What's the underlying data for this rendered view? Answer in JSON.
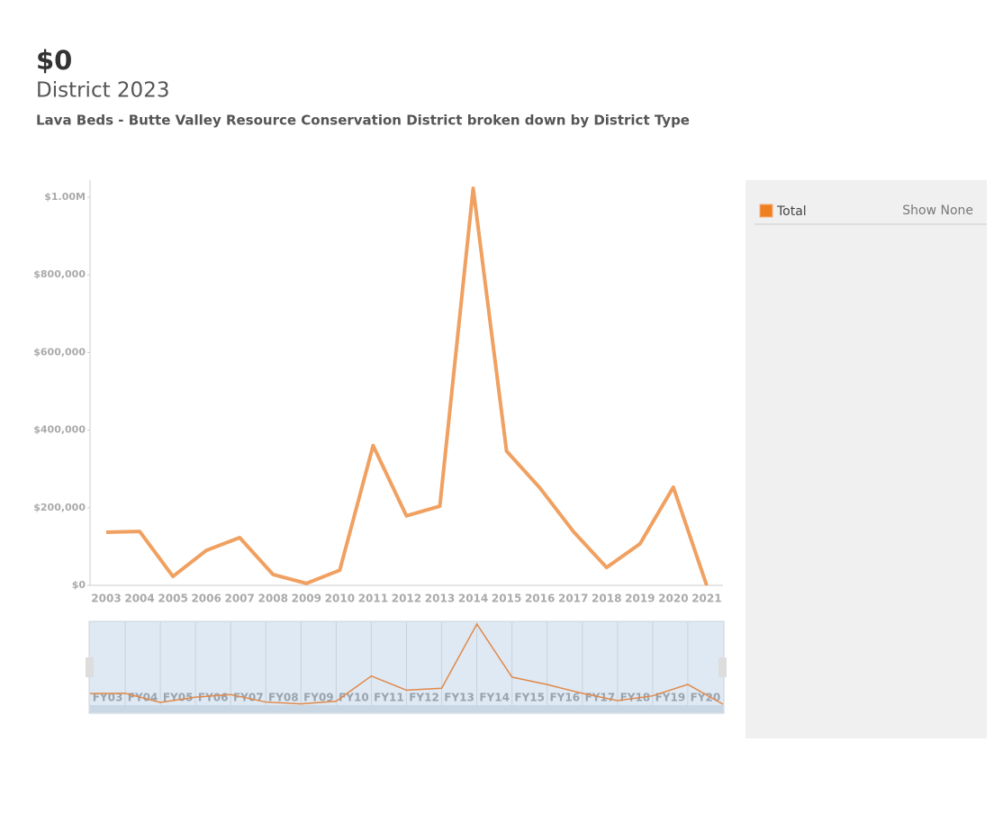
{
  "header": {
    "value": "$0",
    "title": "District 2023",
    "subtitle": "Lava Beds - Butte Valley Resource Conservation District broken down by District Type"
  },
  "chart_data": {
    "type": "line",
    "categories": [
      "2003",
      "2004",
      "2005",
      "2006",
      "2007",
      "2008",
      "2009",
      "2010",
      "2011",
      "2012",
      "2013",
      "2014",
      "2015",
      "2016",
      "2017",
      "2018",
      "2019",
      "2020",
      "2021"
    ],
    "series": [
      {
        "name": "Total",
        "color": "#f0a060",
        "values": [
          137000,
          139000,
          23000,
          90000,
          123000,
          28000,
          5000,
          39000,
          360000,
          179000,
          204000,
          1023000,
          346000,
          251000,
          139000,
          46000,
          107000,
          253000,
          0
        ]
      }
    ],
    "ylim": [
      0,
      1044000
    ],
    "yticks": [
      {
        "value": 0,
        "label": "$0"
      },
      {
        "value": 200000,
        "label": "$200,000"
      },
      {
        "value": 400000,
        "label": "$400,000"
      },
      {
        "value": 600000,
        "label": "$600,000"
      },
      {
        "value": 800000,
        "label": "$800,000"
      },
      {
        "value": 1000000,
        "label": "$1.00M"
      }
    ]
  },
  "legend": {
    "swatch_color": "#f07f22",
    "show_none": "Show None"
  },
  "navigator": {
    "color": "#e0894a",
    "labels": [
      "FY03",
      "FY04",
      "FY05",
      "FY06",
      "FY07",
      "FY08",
      "FY09",
      "FY10",
      "FY11",
      "FY12",
      "FY13",
      "FY14",
      "FY15",
      "FY16",
      "FY17",
      "FY18",
      "FY19",
      "FY20"
    ]
  }
}
